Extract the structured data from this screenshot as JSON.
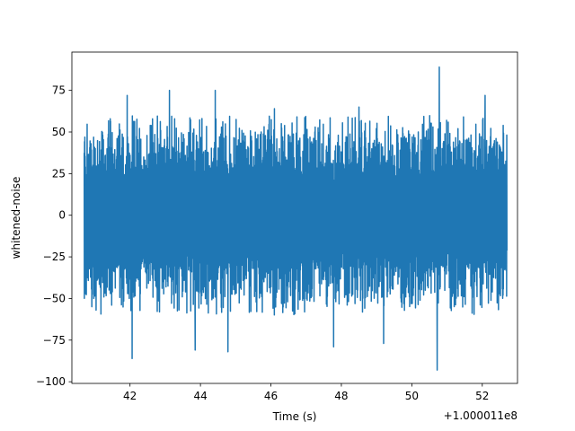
{
  "chart_data": {
    "type": "line",
    "title": "",
    "xlabel": "Time (s)",
    "ylabel": "whitened-noise",
    "x_offset_label": "+1.000011e8",
    "xlim": [
      40.35,
      53.0
    ],
    "ylim": [
      -101,
      98
    ],
    "x_ticks": [
      42,
      44,
      46,
      48,
      50,
      52
    ],
    "x_tick_labels": [
      "42",
      "44",
      "46",
      "48",
      "50",
      "52"
    ],
    "y_ticks": [
      -100,
      -75,
      -50,
      -25,
      0,
      25,
      50,
      75
    ],
    "y_tick_labels": [
      "−100",
      "−75",
      "−50",
      "−25",
      "0",
      "25",
      "50",
      "75"
    ],
    "grid": false,
    "colors": {
      "series": "#1f77b4",
      "axes": "#000000",
      "background": "#ffffff"
    },
    "series": [
      {
        "x_start": 40.7,
        "x_end": 52.7,
        "envelope": {
          "upper_typical": 32,
          "lower_typical": -32,
          "upper_common_peak": 50,
          "lower_common_peak": -50
        },
        "peaks": [
          {
            "x": 50.78,
            "y": 89
          },
          {
            "x": 50.72,
            "y": -93
          },
          {
            "x": 44.42,
            "y": 75
          },
          {
            "x": 43.12,
            "y": 75
          },
          {
            "x": 41.92,
            "y": 72
          },
          {
            "x": 42.06,
            "y": -86
          },
          {
            "x": 43.85,
            "y": -81
          },
          {
            "x": 44.78,
            "y": -82
          },
          {
            "x": 47.78,
            "y": -79
          },
          {
            "x": 49.2,
            "y": -77
          },
          {
            "x": 52.08,
            "y": 72
          },
          {
            "x": 46.1,
            "y": 64
          },
          {
            "x": 48.5,
            "y": 65
          }
        ]
      }
    ]
  }
}
